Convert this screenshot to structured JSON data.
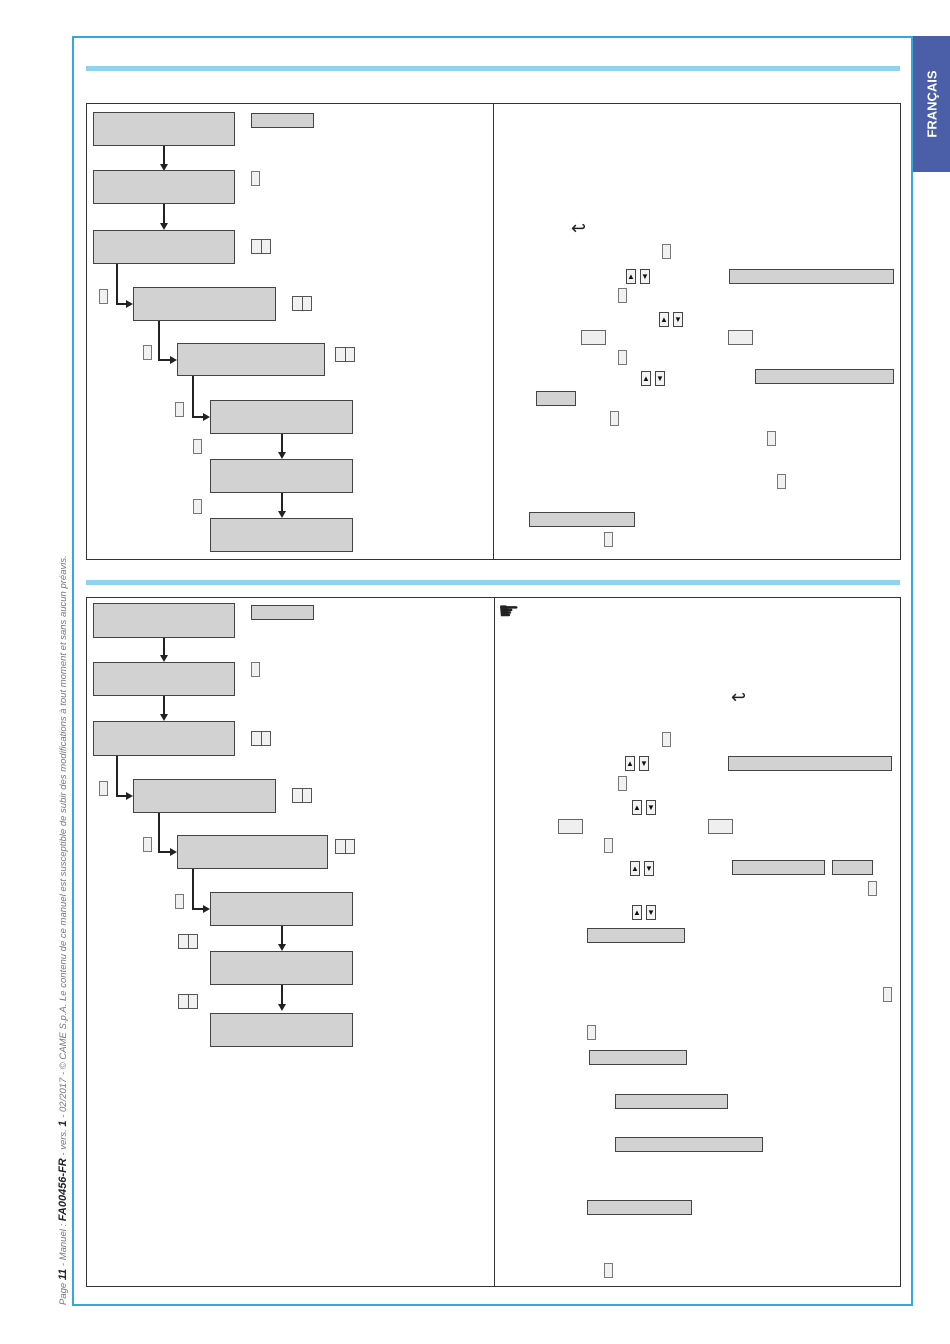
{
  "sidebar": {
    "language_tab": "FRANÇAIS"
  },
  "footer": {
    "page_prefix": "Page ",
    "page_number": "11",
    "manual_prefix": " - Manuel : ",
    "manual_code": "FA00456-FR",
    "version_prefix": " - vers. ",
    "version": "1",
    "notice": " - 02/2017 - © CAME S.p.A. Le contenu de ce manuel est susceptible de subir des modifications à tout moment et sans aucun préavis."
  },
  "icons": {
    "back": "return-arrow-icon",
    "up": "arrow-up-icon",
    "down": "arrow-down-icon",
    "hand": "pointing-hand-icon",
    "up_glyph": "▲",
    "down_glyph": "▼",
    "back_glyph": "↩",
    "hand_glyph": "☛"
  },
  "colors": {
    "frame": "#35a7df",
    "rule": "#8fd3f0",
    "language_tab": "#4a5fa8",
    "box_fill": "#d2d2d2"
  }
}
